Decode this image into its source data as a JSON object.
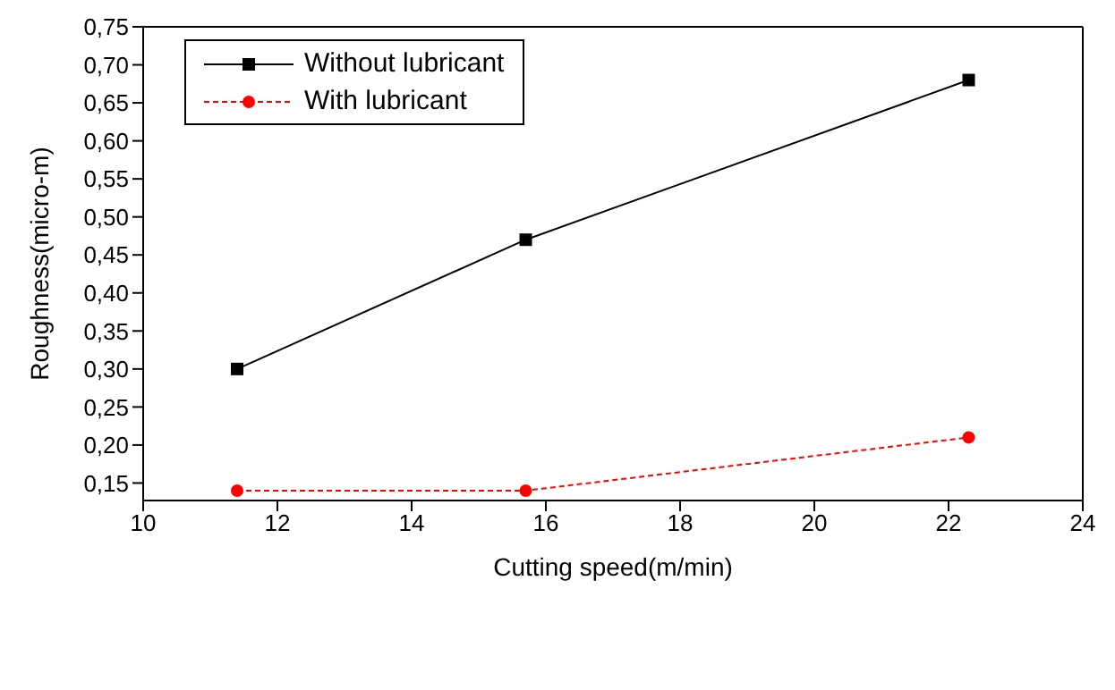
{
  "chart_data": {
    "type": "line",
    "xlabel": "Cutting speed(m/min)",
    "ylabel": "Roughness(micro-m)",
    "xlim": [
      10,
      24
    ],
    "xticks": [
      10,
      12,
      14,
      16,
      18,
      20,
      22,
      24
    ],
    "ylim": [
      0.127,
      0.75
    ],
    "yticks": [
      {
        "value": 0.15,
        "label": "0,15"
      },
      {
        "value": 0.2,
        "label": "0,20"
      },
      {
        "value": 0.25,
        "label": "0,25"
      },
      {
        "value": 0.3,
        "label": "0,30"
      },
      {
        "value": 0.35,
        "label": "0,35"
      },
      {
        "value": 0.4,
        "label": "0,40"
      },
      {
        "value": 0.45,
        "label": "0,45"
      },
      {
        "value": 0.5,
        "label": "0,50"
      },
      {
        "value": 0.55,
        "label": "0,55"
      },
      {
        "value": 0.6,
        "label": "0,60"
      },
      {
        "value": 0.65,
        "label": "0,65"
      },
      {
        "value": 0.7,
        "label": "0,70"
      },
      {
        "value": 0.75,
        "label": "0,75"
      }
    ],
    "legend": "top left",
    "series": [
      {
        "name": "Without lubricant",
        "color": "#000000",
        "x": [
          11.4,
          15.7,
          22.3
        ],
        "values": [
          0.3,
          0.47,
          0.68
        ],
        "marker": "square",
        "line_style": "solid"
      },
      {
        "name": "With lubricant",
        "color": "#ff0000",
        "x": [
          11.4,
          15.7,
          22.3
        ],
        "values": [
          0.14,
          0.14,
          0.21
        ],
        "marker": "circle",
        "line_style": "dashed"
      }
    ]
  }
}
